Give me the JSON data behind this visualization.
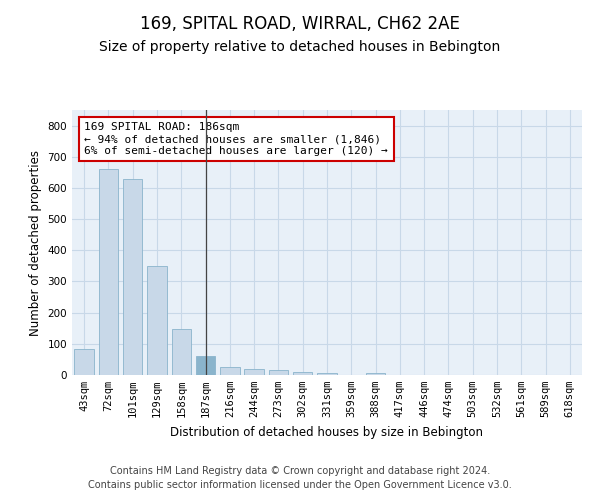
{
  "title": "169, SPITAL ROAD, WIRRAL, CH62 2AE",
  "subtitle": "Size of property relative to detached houses in Bebington",
  "xlabel": "Distribution of detached houses by size in Bebington",
  "ylabel": "Number of detached properties",
  "footer_line1": "Contains HM Land Registry data © Crown copyright and database right 2024.",
  "footer_line2": "Contains public sector information licensed under the Open Government Licence v3.0.",
  "categories": [
    "43sqm",
    "72sqm",
    "101sqm",
    "129sqm",
    "158sqm",
    "187sqm",
    "216sqm",
    "244sqm",
    "273sqm",
    "302sqm",
    "331sqm",
    "359sqm",
    "388sqm",
    "417sqm",
    "446sqm",
    "474sqm",
    "503sqm",
    "532sqm",
    "561sqm",
    "589sqm",
    "618sqm"
  ],
  "values": [
    83,
    660,
    628,
    349,
    148,
    62,
    25,
    20,
    17,
    11,
    6,
    0,
    8,
    0,
    0,
    0,
    0,
    0,
    0,
    0,
    0
  ],
  "bar_color": "#c8d8e8",
  "bar_edge_color": "#8ab4cc",
  "highlight_bar_index": 5,
  "highlight_bar_color": "#8ab4cc",
  "annotation_text": "169 SPITAL ROAD: 186sqm\n← 94% of detached houses are smaller (1,846)\n6% of semi-detached houses are larger (120) →",
  "annotation_box_color": "#ffffff",
  "annotation_box_edge_color": "#cc0000",
  "vline_x_index": 5,
  "ylim": [
    0,
    850
  ],
  "yticks": [
    0,
    100,
    200,
    300,
    400,
    500,
    600,
    700,
    800
  ],
  "grid_color": "#c8d8e8",
  "bg_color": "#e8f0f8",
  "title_fontsize": 12,
  "subtitle_fontsize": 10,
  "axis_label_fontsize": 8.5,
  "tick_fontsize": 7.5,
  "annotation_fontsize": 8,
  "footer_fontsize": 7
}
